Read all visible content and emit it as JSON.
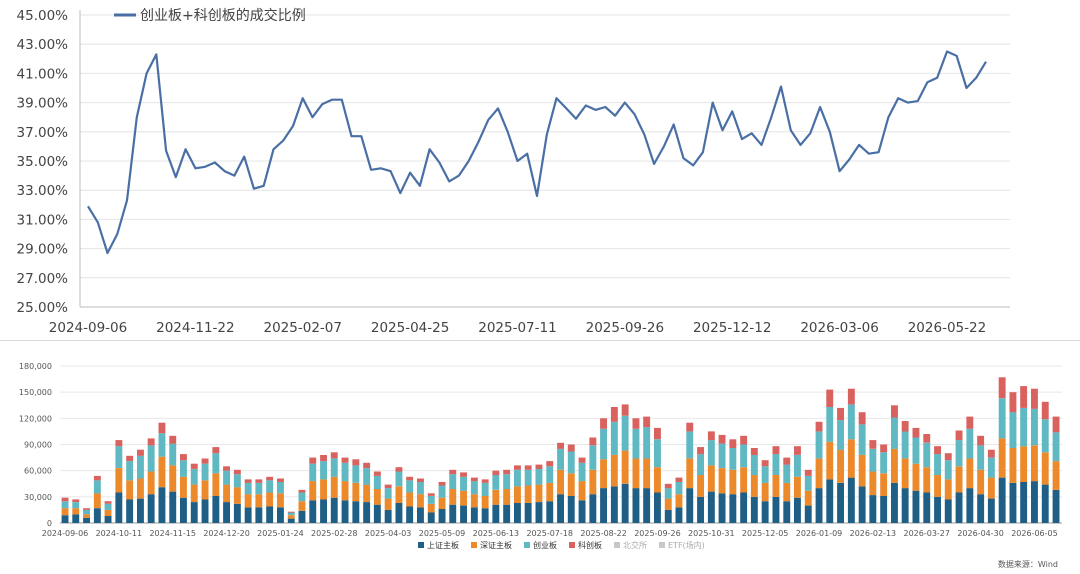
{
  "chart_data": [
    {
      "type": "line",
      "title": "",
      "xlabel": "",
      "ylabel": "",
      "ylim": [
        25,
        45
      ],
      "yticks": [
        "25.00%",
        "27.00%",
        "29.00%",
        "31.00%",
        "33.00%",
        "35.00%",
        "37.00%",
        "39.00%",
        "41.00%",
        "43.00%",
        "45.00%"
      ],
      "xticks": [
        "2024-09-06",
        "2024-11-22",
        "2025-02-07",
        "2025-04-25",
        "2025-07-11",
        "2025-09-26",
        "2025-12-12",
        "2026-03-06",
        "2026-05-22"
      ],
      "legend": "top-left",
      "grid": true,
      "color": "#4a6fa5",
      "series": [
        {
          "name": "创业板+科创板的成交比例",
          "values": [
            31.9,
            30.8,
            28.7,
            30.0,
            32.3,
            38.0,
            41.0,
            42.3,
            35.7,
            33.9,
            35.8,
            34.5,
            34.6,
            34.9,
            34.3,
            34.0,
            35.3,
            33.1,
            33.3,
            35.8,
            36.4,
            37.4,
            39.3,
            38.0,
            38.9,
            39.2,
            39.2,
            36.7,
            36.7,
            34.4,
            34.5,
            34.3,
            32.8,
            34.2,
            33.3,
            35.8,
            34.9,
            33.6,
            34.0,
            35.0,
            36.3,
            37.8,
            38.6,
            37.0,
            35.0,
            35.5,
            32.6,
            36.8,
            39.3,
            38.6,
            37.9,
            38.8,
            38.5,
            38.7,
            38.1,
            39.0,
            38.2,
            36.8,
            34.8,
            36.0,
            37.5,
            35.2,
            34.7,
            35.6,
            39.0,
            37.1,
            38.4,
            36.5,
            36.9,
            36.1,
            38.0,
            40.1,
            37.1,
            36.1,
            36.9,
            38.7,
            37.0,
            34.3,
            35.1,
            36.1,
            35.5,
            35.6,
            38.0,
            39.3,
            39.0,
            39.1,
            40.4,
            40.7,
            42.5,
            42.2,
            40.0,
            40.7,
            41.8
          ]
        }
      ]
    },
    {
      "type": "bar",
      "stacked": true,
      "title": "",
      "xlabel": "",
      "ylabel": "",
      "ylim": [
        0,
        180000
      ],
      "yticks": [
        "0",
        "30,000",
        "60,000",
        "90,000",
        "120,000",
        "150,000",
        "180,000"
      ],
      "xticks": [
        "2024-09-06",
        "2024-10-11",
        "2024-11-15",
        "2024-12-20",
        "2025-01-24",
        "2025-02-28",
        "2025-04-03",
        "2025-05-09",
        "2025-06-13",
        "2025-07-18",
        "2025-08-22",
        "2025-09-26",
        "2025-10-31",
        "2025-12-05",
        "2026-01-09",
        "2026-02-13",
        "2026-03-27",
        "2026-04-30",
        "2026-06-05"
      ],
      "legend": "bottom-center",
      "grid": true,
      "source_note": "数据来源：Wind",
      "series": [
        {
          "name": "上证主板",
          "color": "#1f5f86",
          "values": [
            9000,
            10000,
            6000,
            17000,
            8000,
            35000,
            27000,
            28000,
            33000,
            41000,
            36000,
            29000,
            24000,
            27000,
            31000,
            24000,
            22000,
            18000,
            18000,
            19000,
            18000,
            5000,
            14000,
            26000,
            27000,
            29000,
            26000,
            25000,
            24000,
            21000,
            15000,
            23000,
            19000,
            18000,
            12000,
            16000,
            21000,
            20000,
            18000,
            17000,
            21000,
            21000,
            23000,
            23000,
            24000,
            25000,
            33000,
            31000,
            26000,
            33000,
            40000,
            42000,
            45000,
            40000,
            40000,
            35000,
            15000,
            18000,
            40000,
            30000,
            36000,
            34000,
            33000,
            35000,
            30000,
            25000,
            30000,
            25000,
            29000,
            20000,
            40000,
            50000,
            46000,
            52000,
            42000,
            32000,
            31000,
            46000,
            40000,
            37000,
            35000,
            30000,
            27000,
            35000,
            40000,
            33000,
            28000,
            52000,
            46000,
            47000,
            48000,
            44000,
            38000
          ]
        },
        {
          "name": "深证主板",
          "color": "#ec8a2b",
          "values": [
            8000,
            7000,
            4000,
            17000,
            7000,
            28000,
            22000,
            23000,
            26000,
            35000,
            30000,
            24000,
            20000,
            22000,
            26000,
            20000,
            19000,
            15000,
            15000,
            16000,
            16000,
            4000,
            11000,
            22000,
            23000,
            24000,
            22000,
            21000,
            20000,
            18000,
            13000,
            19000,
            16000,
            15000,
            10000,
            13000,
            18000,
            17000,
            15000,
            14000,
            17000,
            18000,
            19000,
            20000,
            20000,
            21000,
            28000,
            26000,
            22000,
            28000,
            33000,
            36000,
            38000,
            34000,
            34000,
            29000,
            13000,
            15000,
            34000,
            25000,
            30000,
            29000,
            28000,
            29000,
            25000,
            21000,
            25000,
            21000,
            24000,
            17000,
            34000,
            43000,
            38000,
            44000,
            36000,
            27000,
            26000,
            39000,
            34000,
            31000,
            29000,
            25000,
            23000,
            30000,
            34000,
            28000,
            24000,
            45000,
            40000,
            41000,
            41000,
            37000,
            33000
          ]
        },
        {
          "name": "创业板",
          "color": "#5fb8c2",
          "values": [
            8000,
            7000,
            5000,
            15000,
            7000,
            25000,
            22000,
            26000,
            30000,
            27000,
            25000,
            19000,
            18000,
            19000,
            23000,
            16000,
            15000,
            13000,
            13000,
            14000,
            13000,
            3000,
            10000,
            20000,
            21000,
            21000,
            21000,
            20000,
            19000,
            15000,
            12000,
            17000,
            14000,
            14000,
            9000,
            14000,
            17000,
            16000,
            15000,
            15000,
            17000,
            17000,
            19000,
            18000,
            18000,
            19000,
            24000,
            25000,
            21000,
            28000,
            35000,
            38000,
            40000,
            34000,
            36000,
            32000,
            12000,
            14000,
            31000,
            24000,
            29000,
            28000,
            25000,
            26000,
            23000,
            19000,
            24000,
            21000,
            25000,
            17000,
            31000,
            40000,
            34000,
            40000,
            35000,
            26000,
            24000,
            36000,
            31000,
            30000,
            28000,
            24000,
            22000,
            30000,
            34000,
            28000,
            23000,
            46000,
            41000,
            44000,
            42000,
            38000,
            33000
          ]
        },
        {
          "name": "科创板",
          "color": "#d9615e",
          "values": [
            4000,
            3000,
            2000,
            5000,
            3000,
            7000,
            6000,
            7000,
            8000,
            12000,
            9000,
            7000,
            6000,
            6000,
            7000,
            5000,
            5000,
            4000,
            4000,
            4000,
            4000,
            1000,
            3000,
            7000,
            7000,
            7000,
            6000,
            7000,
            6000,
            5000,
            4000,
            5000,
            4000,
            4000,
            3000,
            4000,
            5000,
            5000,
            4000,
            4000,
            5000,
            5000,
            5000,
            5000,
            5000,
            6000,
            7000,
            8000,
            6000,
            9000,
            12000,
            17000,
            13000,
            12000,
            12000,
            13000,
            5000,
            5000,
            10000,
            8000,
            10000,
            10000,
            10000,
            10000,
            8000,
            7000,
            9000,
            8000,
            10000,
            7000,
            11000,
            20000,
            14000,
            18000,
            14000,
            10000,
            9000,
            14000,
            12000,
            11000,
            10000,
            9000,
            8000,
            11000,
            14000,
            11000,
            9000,
            24000,
            23000,
            25000,
            23000,
            20000,
            18000
          ]
        },
        {
          "name": "北交所",
          "color": "#c8c8c8",
          "values": []
        },
        {
          "name": "ETF(场内)",
          "color": "#c8c8c8",
          "values": []
        }
      ]
    }
  ]
}
